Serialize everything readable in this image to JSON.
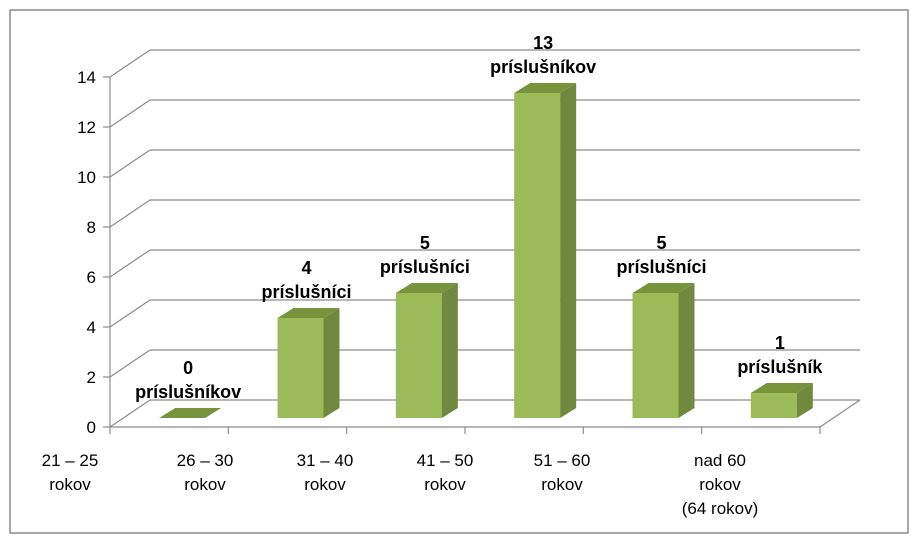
{
  "chart_data": {
    "type": "bar3d",
    "categories": [
      [
        "21 – 25",
        "rokov"
      ],
      [
        "26 – 30",
        "rokov"
      ],
      [
        "31 – 40",
        "rokov"
      ],
      [
        "41 – 50",
        "rokov"
      ],
      [
        "51 – 60",
        "rokov"
      ],
      [
        "nad 60",
        "rokov",
        "(64 rokov)"
      ]
    ],
    "values": [
      0,
      4,
      5,
      13,
      5,
      1
    ],
    "value_labels": [
      "0 príslušníkov",
      "4 príslušníci",
      "5 príslušníci",
      "13 príslušníkov",
      "5 príslušníci",
      "1 príslušník"
    ],
    "color": "#9bbb59",
    "ylim": [
      0,
      14
    ],
    "yticks": [
      0,
      2,
      4,
      6,
      8,
      10,
      12,
      14
    ],
    "grid": true
  }
}
